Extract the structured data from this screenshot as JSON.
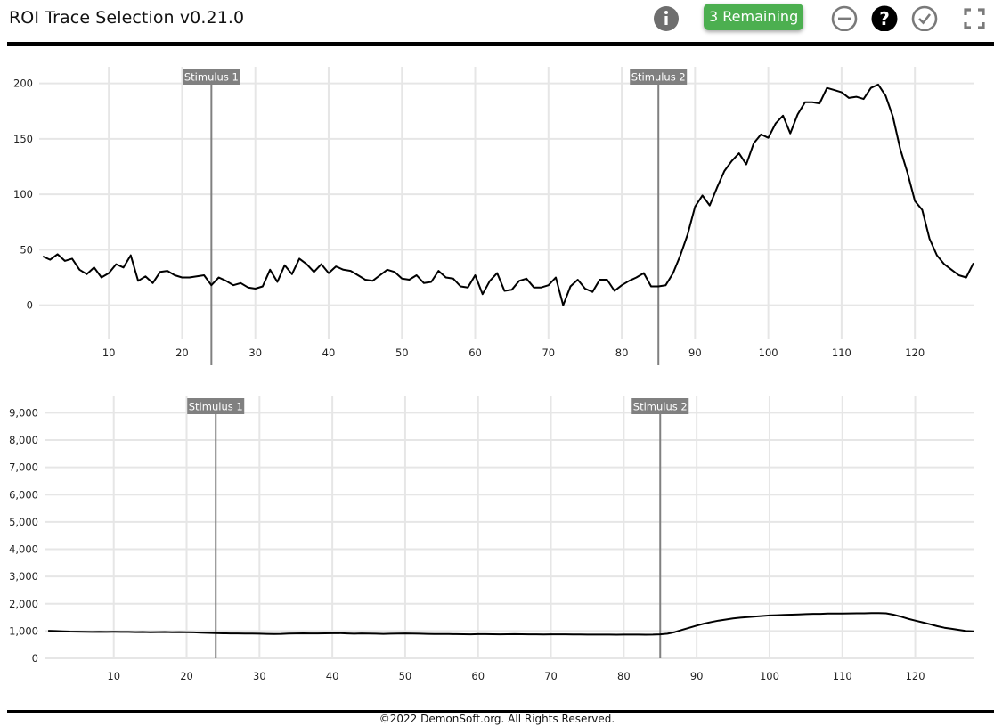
{
  "app": {
    "title": "ROI Trace Selection v0.21.0",
    "remaining_label": "3 Remaining",
    "footer": "©2022 DemonSoft.org. All Rights Reserved."
  },
  "toolbar": {
    "info_icon": "info-icon",
    "reject_icon": "minus-circle-icon",
    "help_icon": "question-icon",
    "accept_icon": "check-circle-icon",
    "fullscreen_icon": "fullscreen-icon"
  },
  "colors": {
    "accent": "#4caf50",
    "stimulus": "#808080",
    "trace": "#000000",
    "grid": "#e6e6e6"
  },
  "chart_data": [
    {
      "type": "line",
      "xlim": [
        0.5,
        128
      ],
      "ylim": [
        -30,
        215
      ],
      "x_ticks": [
        10,
        20,
        30,
        40,
        50,
        60,
        70,
        80,
        90,
        100,
        110,
        120
      ],
      "y_ticks": [
        0,
        50,
        100,
        150,
        200
      ],
      "grid": true,
      "stimuli": [
        {
          "label": "Stimulus 1",
          "x": 24
        },
        {
          "label": "Stimulus 2",
          "x": 85
        }
      ],
      "series": [
        {
          "values": [
            44,
            41,
            46,
            40,
            42,
            32,
            28,
            34,
            25,
            29,
            37,
            34,
            45,
            22,
            26,
            20,
            30,
            31,
            27,
            25,
            25,
            26,
            27,
            18,
            25,
            22,
            18,
            20,
            16,
            15,
            17,
            32,
            21,
            36,
            28,
            42,
            37,
            30,
            37,
            29,
            35,
            32,
            31,
            27,
            23,
            22,
            27,
            32,
            30,
            24,
            23,
            27,
            20,
            21,
            31,
            25,
            24,
            17,
            16,
            27,
            10,
            22,
            29,
            13,
            14,
            22,
            24,
            16,
            16,
            18,
            25,
            0,
            17,
            23,
            15,
            12,
            23,
            23,
            13,
            18,
            22,
            25,
            29,
            17,
            17,
            18,
            29,
            45,
            64,
            89,
            99,
            90,
            106,
            121,
            130,
            137,
            127,
            146,
            154,
            151,
            164,
            171,
            155,
            172,
            183,
            183,
            182,
            196,
            194,
            192,
            187,
            188,
            186,
            196,
            199,
            189,
            170,
            141,
            119,
            94,
            86,
            60,
            45,
            37,
            32,
            27,
            25,
            38
          ]
        }
      ]
    },
    {
      "type": "line",
      "xlim": [
        0.5,
        128
      ],
      "ylim": [
        0,
        9600
      ],
      "x_ticks": [
        10,
        20,
        30,
        40,
        50,
        60,
        70,
        80,
        90,
        100,
        110,
        120
      ],
      "y_ticks": [
        0,
        1000,
        2000,
        3000,
        4000,
        5000,
        6000,
        7000,
        8000,
        9000
      ],
      "y_tick_labels": [
        "0",
        "1,000",
        "2,000",
        "3,000",
        "4,000",
        "5,000",
        "6,000",
        "7,000",
        "8,000",
        "9,000"
      ],
      "grid": true,
      "stimuli": [
        {
          "label": "Stimulus 1",
          "x": 24
        },
        {
          "label": "Stimulus 2",
          "x": 85
        }
      ],
      "series": [
        {
          "values": [
            1010,
            1000,
            990,
            980,
            975,
            970,
            965,
            970,
            965,
            970,
            968,
            965,
            960,
            962,
            958,
            960,
            962,
            958,
            960,
            955,
            950,
            940,
            930,
            925,
            915,
            912,
            910,
            908,
            905,
            900,
            895,
            890,
            895,
            905,
            912,
            915,
            912,
            910,
            915,
            918,
            920,
            910,
            900,
            910,
            905,
            900,
            895,
            900,
            905,
            910,
            905,
            900,
            895,
            892,
            890,
            888,
            885,
            882,
            880,
            885,
            885,
            882,
            880,
            882,
            885,
            882,
            880,
            878,
            875,
            878,
            880,
            878,
            875,
            872,
            870,
            868,
            870,
            868,
            865,
            868,
            870,
            868,
            865,
            870,
            880,
            900,
            960,
            1040,
            1120,
            1200,
            1270,
            1330,
            1380,
            1420,
            1460,
            1490,
            1510,
            1530,
            1550,
            1570,
            1580,
            1590,
            1600,
            1610,
            1620,
            1630,
            1630,
            1640,
            1640,
            1640,
            1645,
            1650,
            1650,
            1655,
            1660,
            1650,
            1600,
            1530,
            1450,
            1380,
            1320,
            1250,
            1180,
            1120,
            1080,
            1040,
            1000,
            990
          ]
        }
      ]
    }
  ]
}
